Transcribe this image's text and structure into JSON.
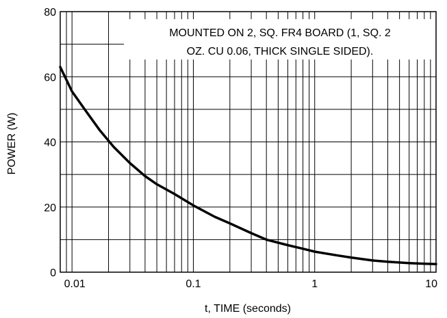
{
  "chart_data": {
    "type": "line",
    "title": "",
    "xlabel": "t, TIME (seconds)",
    "ylabel": "POWER (W)",
    "xscale": "log",
    "xlim": [
      0.008,
      10
    ],
    "ylim": [
      0,
      80
    ],
    "grid": true,
    "x_tick_labels": [
      "0.01",
      "0.1",
      "1",
      "10"
    ],
    "x_ticks": [
      0.01,
      0.1,
      1,
      10
    ],
    "y_ticks": [
      0,
      20,
      40,
      60,
      80
    ],
    "y_tick_labels": [
      "0",
      "20",
      "40",
      "60",
      "80"
    ],
    "annotation": {
      "line1": "MOUNTED ON 2, SQ. FR4 BOARD (1, SQ. 2",
      "line2": "OZ. CU 0.06, THICK SINGLE SIDED)."
    },
    "series": [
      {
        "x": [
          0.008,
          0.01,
          0.013,
          0.017,
          0.022,
          0.03,
          0.04,
          0.05,
          0.07,
          0.1,
          0.15,
          0.2,
          0.3,
          0.4,
          0.6,
          0.8,
          1,
          1.5,
          2,
          3,
          4,
          6,
          8,
          10
        ],
        "values": [
          63,
          55.5,
          49.5,
          43.5,
          38.5,
          33.5,
          29.5,
          27,
          24,
          20.5,
          17,
          15,
          12,
          10,
          8.3,
          7.2,
          6.3,
          5.2,
          4.5,
          3.6,
          3.2,
          2.8,
          2.6,
          2.5
        ]
      }
    ]
  }
}
